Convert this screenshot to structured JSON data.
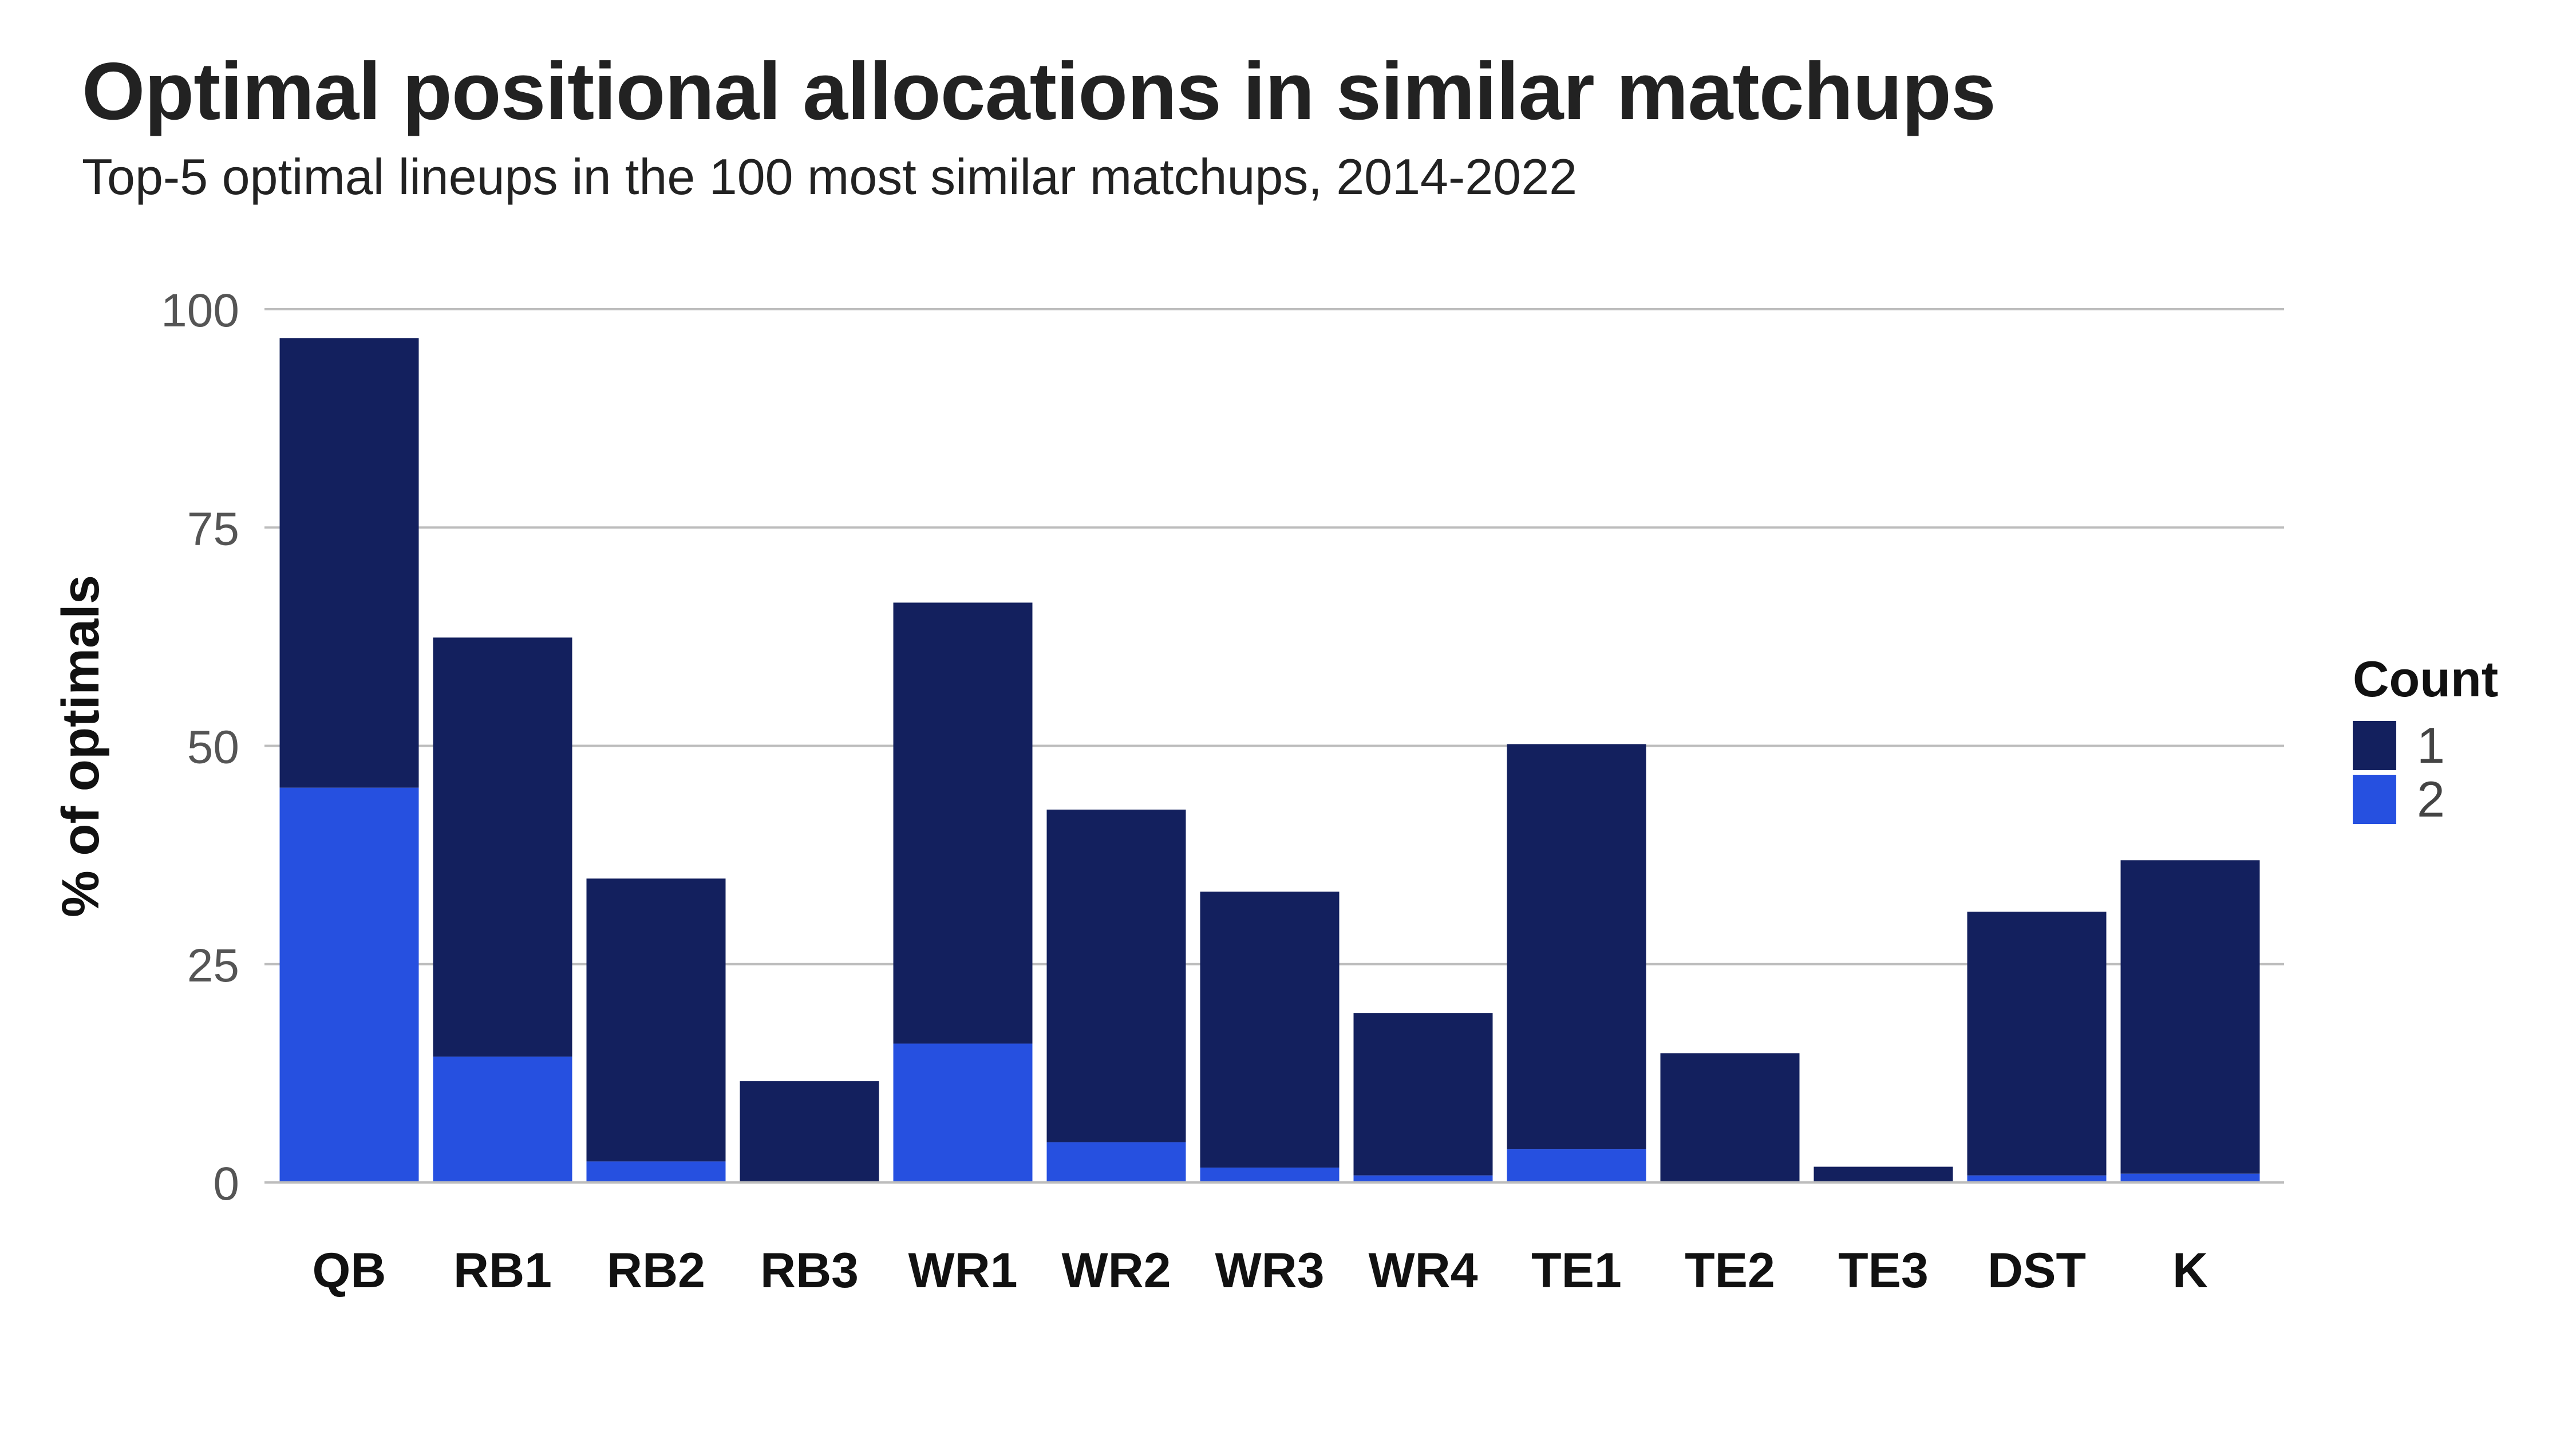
{
  "chart_data": {
    "type": "bar",
    "stacked": true,
    "title": "Optimal positional allocations in similar matchups",
    "subtitle": "Top-5 optimal lineups in the 100 most similar matchups, 2014-2022",
    "xlabel": "",
    "ylabel": "% of optimals",
    "ylim": [
      0,
      100
    ],
    "yticks": [
      "0",
      "25",
      "50",
      "75",
      "100"
    ],
    "grid": true,
    "legend_position": "right",
    "legend_title": "Count",
    "categories": [
      "QB",
      "RB1",
      "RB2",
      "RB3",
      "WR1",
      "WR2",
      "WR3",
      "WR4",
      "TE1",
      "TE2",
      "TE3",
      "DST",
      "K"
    ],
    "series": [
      {
        "name": "1",
        "color": "#13205e",
        "values": [
          51.5,
          48,
          32.4,
          11.6,
          50.5,
          38.1,
          31.6,
          18.6,
          46.4,
          14.8,
          1.8,
          30.2,
          35.9
        ]
      },
      {
        "name": "2",
        "color": "#2650e0",
        "values": [
          45.2,
          14.4,
          2.4,
          0,
          15.9,
          4.6,
          1.7,
          0.8,
          3.8,
          0,
          0,
          0.8,
          1
        ]
      }
    ]
  }
}
